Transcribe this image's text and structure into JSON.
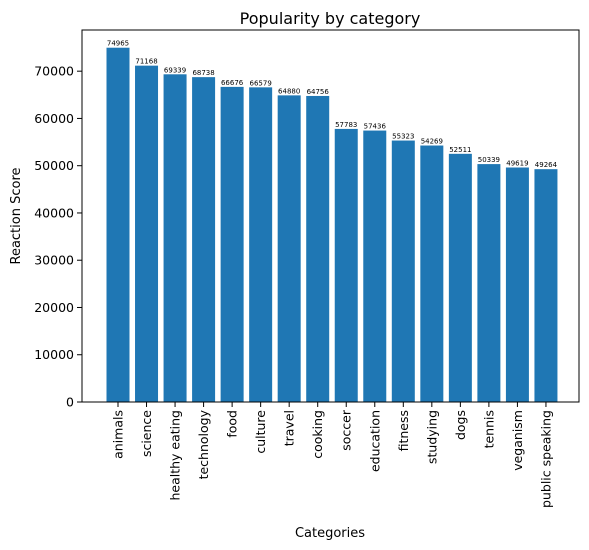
{
  "chart_data": {
    "type": "bar",
    "title": "Popularity by category",
    "xlabel": "Categories",
    "ylabel": "Reaction Score",
    "categories": [
      "animals",
      "science",
      "healthy eating",
      "technology",
      "food",
      "culture",
      "travel",
      "cooking",
      "soccer",
      "education",
      "fitness",
      "studying",
      "dogs",
      "tennis",
      "veganism",
      "public speaking"
    ],
    "values": [
      74965,
      71168,
      69339,
      68738,
      66676,
      66579,
      64880,
      64756,
      57783,
      57436,
      55323,
      54269,
      52511,
      50339,
      49619,
      49264
    ],
    "ylim": [
      0,
      78713
    ],
    "yticks": [
      0,
      10000,
      20000,
      30000,
      40000,
      50000,
      60000,
      70000
    ],
    "bar_color": "#1f77b4",
    "grid": false,
    "legend": "none"
  }
}
